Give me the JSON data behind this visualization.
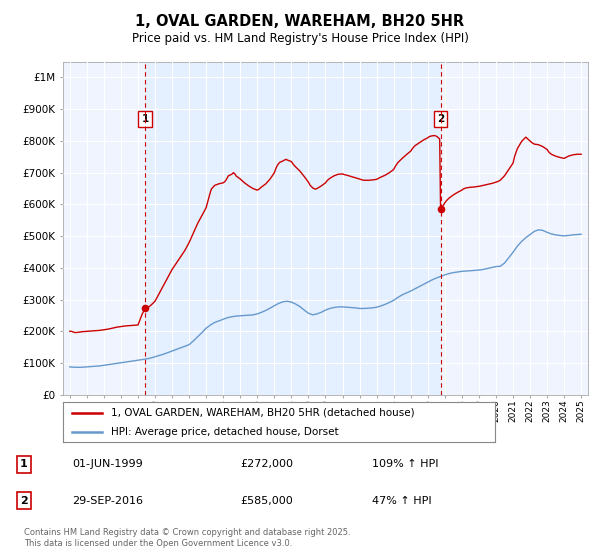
{
  "title": "1, OVAL GARDEN, WAREHAM, BH20 5HR",
  "subtitle": "Price paid vs. HM Land Registry's House Price Index (HPI)",
  "ylabel_ticks": [
    "£0",
    "£100K",
    "£200K",
    "£300K",
    "£400K",
    "£500K",
    "£600K",
    "£700K",
    "£800K",
    "£900K",
    "£1M"
  ],
  "ytick_values": [
    0,
    100000,
    200000,
    300000,
    400000,
    500000,
    600000,
    700000,
    800000,
    900000,
    1000000
  ],
  "ylim": [
    0,
    1050000
  ],
  "xlim_start": 1994.6,
  "xlim_end": 2025.4,
  "marker1_x": 1999.42,
  "marker1_y": 272000,
  "marker2_x": 2016.75,
  "marker2_y": 585000,
  "sale_color": "#cc0000",
  "hpi_color": "#6699cc",
  "marker_vline_color": "#cc0000",
  "shade_color": "#ddeeff",
  "bg_color": "#f0f4ff",
  "legend_label_sale": "1, OVAL GARDEN, WAREHAM, BH20 5HR (detached house)",
  "legend_label_hpi": "HPI: Average price, detached house, Dorset",
  "annotation1_date": "01-JUN-1999",
  "annotation1_price": "£272,000",
  "annotation1_hpi": "109% ↑ HPI",
  "annotation2_date": "29-SEP-2016",
  "annotation2_price": "£585,000",
  "annotation2_hpi": "47% ↑ HPI",
  "footer": "Contains HM Land Registry data © Crown copyright and database right 2025.\nThis data is licensed under the Open Government Licence v3.0.",
  "hpi_data": [
    [
      1995.0,
      88000
    ],
    [
      1995.25,
      87000
    ],
    [
      1995.5,
      86500
    ],
    [
      1995.75,
      87000
    ],
    [
      1996.0,
      88000
    ],
    [
      1996.25,
      89000
    ],
    [
      1996.5,
      90000
    ],
    [
      1996.75,
      91000
    ],
    [
      1997.0,
      93000
    ],
    [
      1997.25,
      95000
    ],
    [
      1997.5,
      97000
    ],
    [
      1997.75,
      99000
    ],
    [
      1998.0,
      101000
    ],
    [
      1998.25,
      103000
    ],
    [
      1998.5,
      105000
    ],
    [
      1998.75,
      107000
    ],
    [
      1999.0,
      109000
    ],
    [
      1999.25,
      111000
    ],
    [
      1999.5,
      113000
    ],
    [
      1999.75,
      116000
    ],
    [
      2000.0,
      120000
    ],
    [
      2000.25,
      124000
    ],
    [
      2000.5,
      128000
    ],
    [
      2000.75,
      133000
    ],
    [
      2001.0,
      138000
    ],
    [
      2001.25,
      143000
    ],
    [
      2001.5,
      148000
    ],
    [
      2001.75,
      153000
    ],
    [
      2002.0,
      158000
    ],
    [
      2002.25,
      170000
    ],
    [
      2002.5,
      183000
    ],
    [
      2002.75,
      196000
    ],
    [
      2003.0,
      210000
    ],
    [
      2003.25,
      220000
    ],
    [
      2003.5,
      228000
    ],
    [
      2003.75,
      233000
    ],
    [
      2004.0,
      238000
    ],
    [
      2004.25,
      243000
    ],
    [
      2004.5,
      246000
    ],
    [
      2004.75,
      248000
    ],
    [
      2005.0,
      249000
    ],
    [
      2005.25,
      250000
    ],
    [
      2005.5,
      251000
    ],
    [
      2005.75,
      252000
    ],
    [
      2006.0,
      255000
    ],
    [
      2006.25,
      260000
    ],
    [
      2006.5,
      266000
    ],
    [
      2006.75,
      273000
    ],
    [
      2007.0,
      281000
    ],
    [
      2007.25,
      288000
    ],
    [
      2007.5,
      293000
    ],
    [
      2007.75,
      295000
    ],
    [
      2008.0,
      292000
    ],
    [
      2008.25,
      286000
    ],
    [
      2008.5,
      278000
    ],
    [
      2008.75,
      267000
    ],
    [
      2009.0,
      257000
    ],
    [
      2009.25,
      252000
    ],
    [
      2009.5,
      255000
    ],
    [
      2009.75,
      260000
    ],
    [
      2010.0,
      267000
    ],
    [
      2010.25,
      272000
    ],
    [
      2010.5,
      275000
    ],
    [
      2010.75,
      277000
    ],
    [
      2011.0,
      277000
    ],
    [
      2011.25,
      276000
    ],
    [
      2011.5,
      275000
    ],
    [
      2011.75,
      274000
    ],
    [
      2012.0,
      272000
    ],
    [
      2012.25,
      272000
    ],
    [
      2012.5,
      273000
    ],
    [
      2012.75,
      274000
    ],
    [
      2013.0,
      276000
    ],
    [
      2013.25,
      280000
    ],
    [
      2013.5,
      285000
    ],
    [
      2013.75,
      291000
    ],
    [
      2014.0,
      298000
    ],
    [
      2014.25,
      307000
    ],
    [
      2014.5,
      315000
    ],
    [
      2014.75,
      321000
    ],
    [
      2015.0,
      327000
    ],
    [
      2015.25,
      334000
    ],
    [
      2015.5,
      341000
    ],
    [
      2015.75,
      348000
    ],
    [
      2016.0,
      355000
    ],
    [
      2016.25,
      362000
    ],
    [
      2016.5,
      368000
    ],
    [
      2016.75,
      373000
    ],
    [
      2017.0,
      378000
    ],
    [
      2017.25,
      382000
    ],
    [
      2017.5,
      385000
    ],
    [
      2017.75,
      387000
    ],
    [
      2018.0,
      389000
    ],
    [
      2018.25,
      390000
    ],
    [
      2018.5,
      391000
    ],
    [
      2018.75,
      392000
    ],
    [
      2019.0,
      393000
    ],
    [
      2019.25,
      395000
    ],
    [
      2019.5,
      398000
    ],
    [
      2019.75,
      401000
    ],
    [
      2020.0,
      404000
    ],
    [
      2020.25,
      405000
    ],
    [
      2020.5,
      415000
    ],
    [
      2020.75,
      432000
    ],
    [
      2021.0,
      449000
    ],
    [
      2021.25,
      468000
    ],
    [
      2021.5,
      483000
    ],
    [
      2021.75,
      495000
    ],
    [
      2022.0,
      505000
    ],
    [
      2022.25,
      515000
    ],
    [
      2022.5,
      520000
    ],
    [
      2022.75,
      518000
    ],
    [
      2023.0,
      512000
    ],
    [
      2023.25,
      507000
    ],
    [
      2023.5,
      504000
    ],
    [
      2023.75,
      502000
    ],
    [
      2024.0,
      501000
    ],
    [
      2024.25,
      502000
    ],
    [
      2024.5,
      504000
    ],
    [
      2024.75,
      505000
    ],
    [
      2025.0,
      506000
    ]
  ],
  "sale_data": [
    [
      1995.0,
      200000
    ],
    [
      1995.1,
      200000
    ],
    [
      1995.2,
      198000
    ],
    [
      1995.3,
      196000
    ],
    [
      1995.5,
      197000
    ],
    [
      1995.75,
      199000
    ],
    [
      1996.0,
      200000
    ],
    [
      1996.25,
      201000
    ],
    [
      1996.5,
      202000
    ],
    [
      1996.75,
      203000
    ],
    [
      1997.0,
      205000
    ],
    [
      1997.25,
      207000
    ],
    [
      1997.5,
      210000
    ],
    [
      1997.75,
      213000
    ],
    [
      1998.0,
      215000
    ],
    [
      1998.25,
      217000
    ],
    [
      1998.5,
      218000
    ],
    [
      1998.75,
      219000
    ],
    [
      1999.0,
      220000
    ],
    [
      1999.25,
      255000
    ],
    [
      1999.42,
      272000
    ],
    [
      1999.5,
      272000
    ],
    [
      1999.75,
      282000
    ],
    [
      2000.0,
      295000
    ],
    [
      2000.25,
      320000
    ],
    [
      2000.5,
      345000
    ],
    [
      2000.75,
      370000
    ],
    [
      2001.0,
      395000
    ],
    [
      2001.25,
      415000
    ],
    [
      2001.5,
      435000
    ],
    [
      2001.75,
      455000
    ],
    [
      2002.0,
      480000
    ],
    [
      2002.25,
      510000
    ],
    [
      2002.5,
      540000
    ],
    [
      2002.75,
      565000
    ],
    [
      2003.0,
      590000
    ],
    [
      2003.1,
      610000
    ],
    [
      2003.2,
      630000
    ],
    [
      2003.3,
      648000
    ],
    [
      2003.5,
      660000
    ],
    [
      2003.75,
      665000
    ],
    [
      2004.0,
      668000
    ],
    [
      2004.1,
      672000
    ],
    [
      2004.2,
      680000
    ],
    [
      2004.3,
      690000
    ],
    [
      2004.5,
      695000
    ],
    [
      2004.6,
      700000
    ],
    [
      2004.7,
      695000
    ],
    [
      2004.75,
      690000
    ],
    [
      2005.0,
      680000
    ],
    [
      2005.1,
      675000
    ],
    [
      2005.25,
      668000
    ],
    [
      2005.5,
      658000
    ],
    [
      2005.75,
      650000
    ],
    [
      2006.0,
      645000
    ],
    [
      2006.1,
      648000
    ],
    [
      2006.25,
      655000
    ],
    [
      2006.5,
      665000
    ],
    [
      2006.75,
      680000
    ],
    [
      2007.0,
      700000
    ],
    [
      2007.1,
      715000
    ],
    [
      2007.2,
      725000
    ],
    [
      2007.3,
      732000
    ],
    [
      2007.5,
      737000
    ],
    [
      2007.6,
      740000
    ],
    [
      2007.7,
      742000
    ],
    [
      2007.75,
      740000
    ],
    [
      2008.0,
      735000
    ],
    [
      2008.1,
      727000
    ],
    [
      2008.25,
      718000
    ],
    [
      2008.5,
      705000
    ],
    [
      2008.75,
      688000
    ],
    [
      2009.0,
      670000
    ],
    [
      2009.1,
      660000
    ],
    [
      2009.25,
      652000
    ],
    [
      2009.4,
      648000
    ],
    [
      2009.5,
      650000
    ],
    [
      2009.75,
      658000
    ],
    [
      2010.0,
      668000
    ],
    [
      2010.1,
      675000
    ],
    [
      2010.25,
      682000
    ],
    [
      2010.5,
      690000
    ],
    [
      2010.75,
      695000
    ],
    [
      2011.0,
      696000
    ],
    [
      2011.1,
      694000
    ],
    [
      2011.25,
      692000
    ],
    [
      2011.5,
      688000
    ],
    [
      2011.75,
      684000
    ],
    [
      2012.0,
      680000
    ],
    [
      2012.1,
      678000
    ],
    [
      2012.25,
      676000
    ],
    [
      2012.5,
      676000
    ],
    [
      2012.75,
      677000
    ],
    [
      2013.0,
      679000
    ],
    [
      2013.1,
      682000
    ],
    [
      2013.25,
      686000
    ],
    [
      2013.5,
      692000
    ],
    [
      2013.75,
      700000
    ],
    [
      2014.0,
      710000
    ],
    [
      2014.1,
      720000
    ],
    [
      2014.25,
      732000
    ],
    [
      2014.5,
      745000
    ],
    [
      2014.75,
      757000
    ],
    [
      2015.0,
      768000
    ],
    [
      2015.1,
      776000
    ],
    [
      2015.25,
      785000
    ],
    [
      2015.5,
      794000
    ],
    [
      2015.75,
      803000
    ],
    [
      2016.0,
      810000
    ],
    [
      2016.1,
      814000
    ],
    [
      2016.25,
      816000
    ],
    [
      2016.4,
      817000
    ],
    [
      2016.5,
      815000
    ],
    [
      2016.6,
      811000
    ],
    [
      2016.7,
      806000
    ],
    [
      2016.75,
      585000
    ],
    [
      2016.8,
      590000
    ],
    [
      2016.9,
      596000
    ],
    [
      2017.0,
      605000
    ],
    [
      2017.1,
      612000
    ],
    [
      2017.25,
      620000
    ],
    [
      2017.5,
      630000
    ],
    [
      2017.75,
      638000
    ],
    [
      2018.0,
      645000
    ],
    [
      2018.1,
      649000
    ],
    [
      2018.25,
      652000
    ],
    [
      2018.5,
      654000
    ],
    [
      2018.75,
      655000
    ],
    [
      2019.0,
      657000
    ],
    [
      2019.1,
      658000
    ],
    [
      2019.25,
      660000
    ],
    [
      2019.5,
      663000
    ],
    [
      2019.75,
      666000
    ],
    [
      2020.0,
      670000
    ],
    [
      2020.1,
      672000
    ],
    [
      2020.25,
      676000
    ],
    [
      2020.5,
      690000
    ],
    [
      2020.75,
      710000
    ],
    [
      2021.0,
      730000
    ],
    [
      2021.1,
      752000
    ],
    [
      2021.25,
      775000
    ],
    [
      2021.5,
      798000
    ],
    [
      2021.75,
      812000
    ],
    [
      2022.0,
      800000
    ],
    [
      2022.1,
      795000
    ],
    [
      2022.25,
      790000
    ],
    [
      2022.5,
      788000
    ],
    [
      2022.75,
      782000
    ],
    [
      2023.0,
      773000
    ],
    [
      2023.1,
      765000
    ],
    [
      2023.25,
      758000
    ],
    [
      2023.5,
      752000
    ],
    [
      2023.75,
      748000
    ],
    [
      2024.0,
      745000
    ],
    [
      2024.1,
      748000
    ],
    [
      2024.25,
      752000
    ],
    [
      2024.5,
      756000
    ],
    [
      2024.75,
      758000
    ],
    [
      2025.0,
      758000
    ]
  ]
}
